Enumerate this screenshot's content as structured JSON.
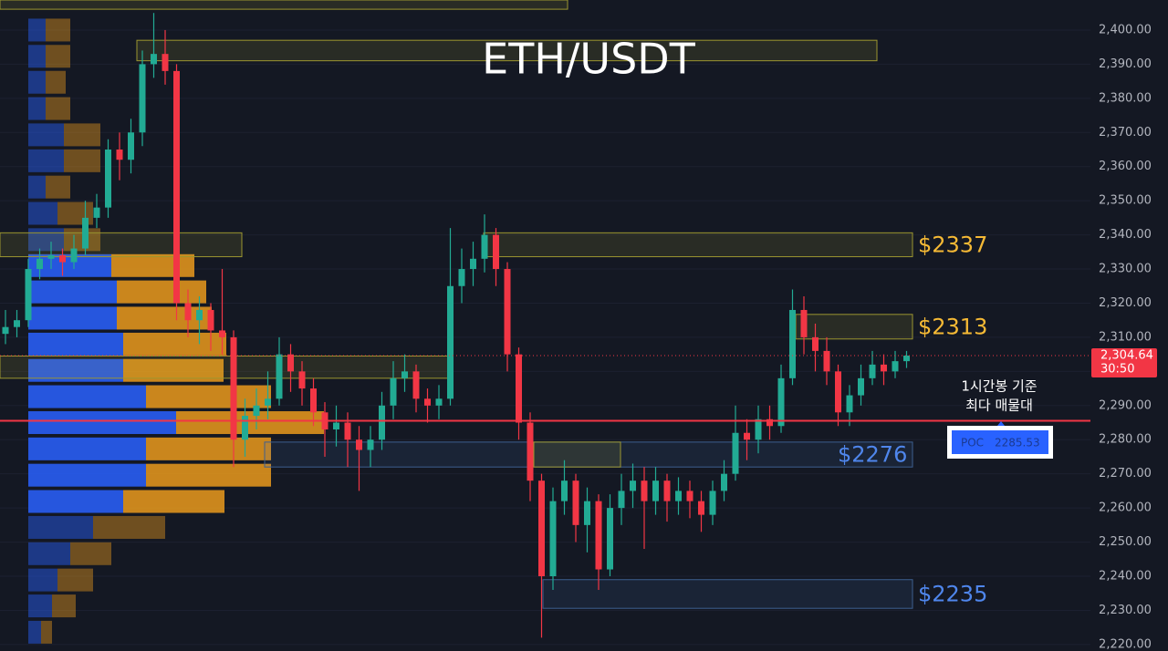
{
  "chart_data": {
    "type": "candlestick",
    "title": "ETH/USDT",
    "ylim": [
      2218.1,
      2408.8
    ],
    "yticks": [
      {
        "value": 2220,
        "label": "2,220.00"
      },
      {
        "value": 2230,
        "label": "2,230.00"
      },
      {
        "value": 2240,
        "label": "2,240.00"
      },
      {
        "value": 2250,
        "label": "2,250.00"
      },
      {
        "value": 2260,
        "label": "2,260.00"
      },
      {
        "value": 2270,
        "label": "2,270.00"
      },
      {
        "value": 2280,
        "label": "2,280.00"
      },
      {
        "value": 2290,
        "label": "2,290.00"
      },
      {
        "value": 2300,
        "label": "2,300.00"
      },
      {
        "value": 2310,
        "label": "2,310.00"
      },
      {
        "value": 2320,
        "label": "2,320.00"
      },
      {
        "value": 2330,
        "label": "2,330.00"
      },
      {
        "value": 2340,
        "label": "2,340.00"
      },
      {
        "value": 2350,
        "label": "2,350.00"
      },
      {
        "value": 2360,
        "label": "2,360.00"
      },
      {
        "value": 2370,
        "label": "2,370.00"
      },
      {
        "value": 2380,
        "label": "2,380.00"
      },
      {
        "value": 2390,
        "label": "2,390.00"
      },
      {
        "value": 2400,
        "label": "2,400.00"
      }
    ],
    "grid": true,
    "up_color": "#22ab94",
    "down_color": "#f23645",
    "open": [
      2311,
      2313,
      2315,
      2330,
      2333,
      2334,
      2332,
      2336,
      2345,
      2348,
      2365,
      2362,
      2370,
      2390,
      2393,
      2388,
      2320,
      2315,
      2318,
      2312,
      2310,
      2280,
      2287,
      2290,
      2292,
      2305,
      2300,
      2295,
      2288,
      2283,
      2285,
      2280,
      2277,
      2280,
      2290,
      2298,
      2300,
      2292,
      2290,
      2292,
      2325,
      2330,
      2333,
      2340,
      2330,
      2305,
      2285,
      2268,
      2240,
      2262,
      2268,
      2255,
      2262,
      2242,
      2260,
      2265,
      2268,
      2262,
      2268,
      2262,
      2265,
      2262,
      2258,
      2265,
      2270,
      2282,
      2280,
      2286,
      2284,
      2298,
      2318,
      2310,
      2306,
      2300,
      2288,
      2293,
      2298,
      2302,
      2300,
      2303
    ],
    "high": [
      2318,
      2318,
      2333,
      2336,
      2338,
      2336,
      2340,
      2350,
      2352,
      2368,
      2370,
      2374,
      2394,
      2405,
      2400,
      2390,
      2324,
      2322,
      2320,
      2330,
      2312,
      2292,
      2295,
      2300,
      2310,
      2308,
      2303,
      2298,
      2291,
      2290,
      2288,
      2284,
      2284,
      2294,
      2303,
      2305,
      2302,
      2295,
      2296,
      2342,
      2336,
      2338,
      2346,
      2342,
      2332,
      2307,
      2288,
      2270,
      2266,
      2274,
      2270,
      2266,
      2264,
      2264,
      2270,
      2273,
      2272,
      2272,
      2270,
      2269,
      2268,
      2265,
      2268,
      2274,
      2290,
      2286,
      2290,
      2290,
      2302,
      2324,
      2322,
      2314,
      2310,
      2302,
      2296,
      2302,
      2306,
      2305,
      2306,
      2306
    ],
    "low": [
      2308,
      2310,
      2313,
      2327,
      2330,
      2328,
      2330,
      2334,
      2342,
      2345,
      2356,
      2358,
      2366,
      2386,
      2384,
      2315,
      2310,
      2308,
      2306,
      2305,
      2272,
      2275,
      2283,
      2286,
      2290,
      2294,
      2290,
      2284,
      2275,
      2278,
      2272,
      2265,
      2272,
      2277,
      2286,
      2294,
      2288,
      2285,
      2286,
      2290,
      2320,
      2325,
      2329,
      2325,
      2300,
      2280,
      2262,
      2222,
      2236,
      2258,
      2250,
      2247,
      2236,
      2240,
      2255,
      2260,
      2248,
      2258,
      2256,
      2258,
      2257,
      2253,
      2255,
      2262,
      2268,
      2274,
      2276,
      2280,
      2282,
      2296,
      2305,
      2300,
      2296,
      2284,
      2284,
      2290,
      2296,
      2296,
      2298,
      2301
    ],
    "close": [
      2313,
      2315,
      2330,
      2333,
      2334,
      2332,
      2336,
      2345,
      2348,
      2365,
      2362,
      2370,
      2390,
      2393,
      2388,
      2320,
      2315,
      2318,
      2312,
      2310,
      2280,
      2287,
      2290,
      2292,
      2305,
      2300,
      2295,
      2288,
      2283,
      2285,
      2280,
      2277,
      2280,
      2290,
      2298,
      2300,
      2292,
      2290,
      2292,
      2325,
      2330,
      2333,
      2340,
      2330,
      2305,
      2285,
      2268,
      2240,
      2262,
      2268,
      2255,
      2262,
      2242,
      2260,
      2265,
      2268,
      2262,
      2268,
      2262,
      2265,
      2262,
      2258,
      2265,
      2270,
      2282,
      2280,
      2286,
      2284,
      2298,
      2318,
      2310,
      2306,
      2300,
      2288,
      2293,
      2298,
      2302,
      2300,
      2303,
      2304.64
    ],
    "last_price": {
      "value": 2304.64,
      "label": "2,304.64"
    },
    "countdown": "30:50",
    "poc": {
      "value": 2285.53,
      "label": "POC",
      "annotation": [
        "1시간봉 기준",
        "최다 매물대"
      ],
      "color": "#f23645"
    },
    "zones": [
      {
        "range": [
          2406.1,
          2408.8
        ],
        "color": "yellow"
      },
      {
        "range": [
          2391,
          2397
        ],
        "color": "yellow"
      },
      {
        "range": [
          2333.6,
          2340.6
        ],
        "color": "yellow"
      },
      {
        "range": [
          2333.6,
          2340.6
        ],
        "color": "yellow",
        "label": "$2337"
      },
      {
        "range": [
          2298,
          2304.5
        ],
        "color": "yellow"
      },
      {
        "range": [
          2309.5,
          2316.7
        ],
        "color": "yellow",
        "label": "$2313"
      },
      {
        "range": [
          2272,
          2279.3
        ],
        "color": "blue",
        "label": "$2276"
      },
      {
        "range": [
          2272,
          2279.3
        ],
        "color": "yellow"
      },
      {
        "range": [
          2230.6,
          2239
        ],
        "color": "blue",
        "label": "$2235"
      }
    ],
    "volume_profile": {
      "levels": [
        2400.0,
        2392.3,
        2384.7,
        2377.0,
        2369.3,
        2361.7,
        2354.0,
        2346.3,
        2338.6,
        2331.0,
        2323.3,
        2315.6,
        2308.0,
        2300.3,
        2292.6,
        2285.0,
        2277.3,
        2269.6,
        2261.9,
        2254.3,
        2246.6,
        2238.9,
        2231.3,
        2223.6
      ],
      "buy": [
        19,
        19,
        19,
        19,
        39,
        39,
        19,
        32,
        39,
        91,
        97,
        97,
        104,
        104,
        129,
        162,
        129,
        129,
        104,
        71,
        46,
        32,
        26,
        14
      ],
      "sell": [
        27,
        27,
        22,
        27,
        40,
        40,
        27,
        39,
        40,
        91,
        98,
        104,
        113,
        110,
        137,
        162,
        137,
        137,
        111,
        79,
        45,
        39,
        26,
        12
      ],
      "buy_color": "#2962ff",
      "sell_color": "#f7a21b"
    }
  }
}
